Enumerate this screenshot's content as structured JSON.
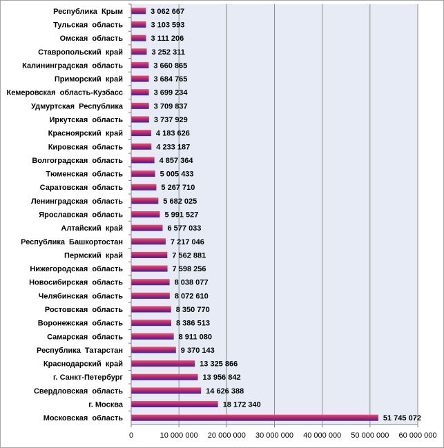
{
  "chart_data": {
    "type": "bar",
    "orientation": "horizontal",
    "categories": [
      "Республика  Крым",
      "Тульская  область",
      "Омская  область",
      "Ставропольский  край",
      "Калининградская  область",
      "Приморский  край",
      "Кемеровская  область-Кузбасс",
      "Удмуртская  Республика",
      "Иркутская  область",
      "Красноярский  край",
      "Кировская  область",
      "Волгоградская  область",
      "Тюменская  область",
      "Саратовская  область",
      "Ленинградская  область",
      "Ярославская  область",
      "Алтайский  край",
      "Республика  Башкортостан",
      "Пермский  край",
      "Нижегородская  область",
      "Новосибирская  область",
      "Челябинская  область",
      "Ростовская  область",
      "Воронежская  область",
      "Самарская  область",
      "Республика  Татарстан",
      "Краснодарский  край",
      "г. Санкт-Петербург",
      "Свердловская  область",
      "г. Москва",
      "Московская  область"
    ],
    "values": [
      3062667,
      3103593,
      3111206,
      3252311,
      3660865,
      3684765,
      3699234,
      3709837,
      3737929,
      4183626,
      4233187,
      4857364,
      5005433,
      5267710,
      5682025,
      5991527,
      6577033,
      7217046,
      7562881,
      7598256,
      8038077,
      8072610,
      8350770,
      8386513,
      8911080,
      9370143,
      13325866,
      13956842,
      14626388,
      18172340,
      51745072
    ],
    "value_labels": [
      "3 062 667",
      "3 103 593",
      "3 111 206",
      "3 252 311",
      "3 660 865",
      "3 684 765",
      "3 699 234",
      "3 709 837",
      "3 737 929",
      "4 183 626",
      "4 233 187",
      "4 857 364",
      "5 005 433",
      "5 267 710",
      "5 682 025",
      "5 991 527",
      "6 577 033",
      "7 217 046",
      "7 562 881",
      "7 598 256",
      "8 038 077",
      "8 072 610",
      "8 350 770",
      "8 386 513",
      "8 911 080",
      "9 370 143",
      "13 325 866",
      "13 956 842",
      "14 626 388",
      "18 172 340",
      "51 745 072"
    ],
    "xlim": [
      0,
      60000000
    ],
    "x_ticks": [
      0,
      10000000,
      20000000,
      30000000,
      40000000,
      50000000,
      60000000
    ],
    "x_tick_labels": [
      "0",
      "10 000 000",
      "20 000 000",
      "30 000 000",
      "40 000 000",
      "50 000 000",
      "60 000 000"
    ],
    "title": "",
    "xlabel": "",
    "ylabel": "",
    "grid": "vertical",
    "legend": "none",
    "colors": {
      "plot_background": "#e6ebf5",
      "gridline": "#8c8c8c",
      "bar_gradient_top": "#e8507a",
      "bar_gradient_mid": "#b0226a",
      "bar_gradient_bottom": "#2a2aa8"
    }
  }
}
